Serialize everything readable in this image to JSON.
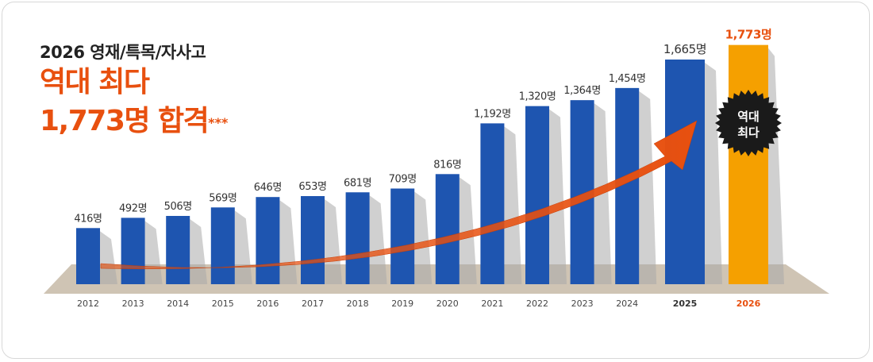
{
  "header": {
    "subtitle": "2026 영재/특목/자사고",
    "headline_line1": "역대 최다",
    "headline_line2": "1,773명 합격",
    "stars": "***"
  },
  "badge": {
    "line1": "역대",
    "line2": "최다"
  },
  "colors": {
    "bar": "#1e55b0",
    "highlight_bar": "#f5a000",
    "accent": "#e8500f",
    "floor": "#cfc4b4"
  },
  "chart_data": {
    "type": "bar",
    "title": "2026 영재/특목/자사고 역대 최다 1,773명 합격",
    "xlabel": "",
    "ylabel": "",
    "categories": [
      "2012",
      "2013",
      "2014",
      "2015",
      "2016",
      "2017",
      "2018",
      "2019",
      "2020",
      "2021",
      "2022",
      "2023",
      "2024",
      "2025",
      "2026"
    ],
    "values": [
      416,
      492,
      506,
      569,
      646,
      653,
      681,
      709,
      816,
      1192,
      1320,
      1364,
      1454,
      1665,
      1773
    ],
    "data_labels": [
      "416명",
      "492명",
      "506명",
      "569명",
      "646명",
      "653명",
      "681명",
      "709명",
      "816명",
      "1,192명",
      "1,320명",
      "1,364명",
      "1,454명",
      "1,665명",
      "1,773명"
    ],
    "highlight": "2026",
    "trend_arrow": true
  }
}
